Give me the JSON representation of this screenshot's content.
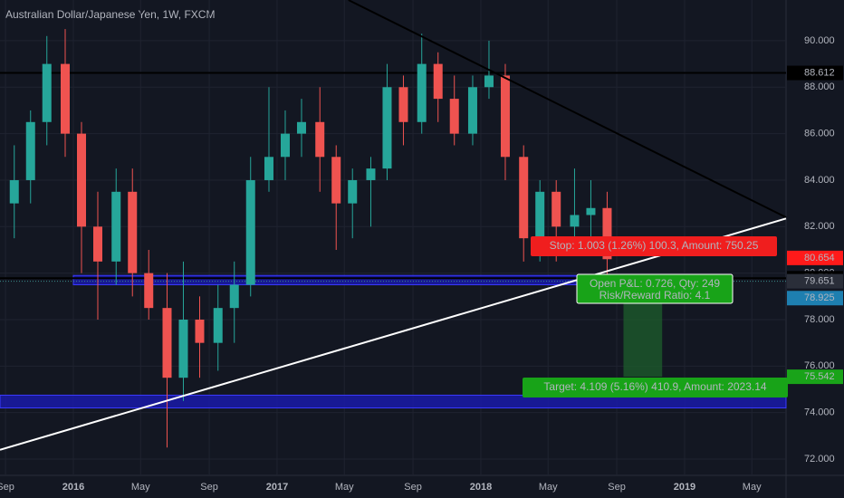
{
  "chart_data": {
    "type": "candlestick",
    "title": "Australian Dollar/Japanese Yen, 1W, FXCM",
    "x": [
      2015.71,
      2015.79,
      2015.87,
      2015.96,
      2016.04,
      2016.12,
      2016.21,
      2016.29,
      2016.37,
      2016.46,
      2016.54,
      2016.62,
      2016.71,
      2016.79,
      2016.87,
      2016.96,
      2017.04,
      2017.12,
      2017.21,
      2017.29,
      2017.37,
      2017.46,
      2017.54,
      2017.62,
      2017.71,
      2017.79,
      2017.87,
      2017.96,
      2018.04,
      2018.12,
      2018.21,
      2018.29,
      2018.37,
      2018.46,
      2018.54,
      2018.62
    ],
    "candles": [
      [
        83,
        85.5,
        81.5,
        84
      ],
      [
        84,
        87,
        83,
        86.5
      ],
      [
        86.5,
        90.2,
        85.5,
        89
      ],
      [
        89,
        90.5,
        85,
        86
      ],
      [
        86,
        86.5,
        80,
        82
      ],
      [
        82,
        83.5,
        78,
        80.5
      ],
      [
        80.5,
        84.5,
        79.5,
        83.5
      ],
      [
        83.5,
        84.5,
        79,
        80
      ],
      [
        80,
        81,
        78,
        78.5
      ],
      [
        78.5,
        80,
        72.5,
        75.5
      ],
      [
        75.5,
        80.5,
        74.5,
        78
      ],
      [
        78,
        79,
        75.5,
        77
      ],
      [
        77,
        79.5,
        75.8,
        78.5
      ],
      [
        78.5,
        80.5,
        77,
        79.5
      ],
      [
        79.5,
        85,
        79,
        84
      ],
      [
        84,
        88,
        83.5,
        85
      ],
      [
        85,
        87,
        84,
        86
      ],
      [
        86,
        87.5,
        85,
        86.5
      ],
      [
        86.5,
        88,
        83.5,
        85
      ],
      [
        85,
        85.5,
        81,
        83
      ],
      [
        83,
        84.5,
        81.5,
        84
      ],
      [
        84,
        85,
        82,
        84.5
      ],
      [
        84.5,
        89,
        84,
        88
      ],
      [
        88,
        88.5,
        85.5,
        86.5
      ],
      [
        86.5,
        90.3,
        86,
        89
      ],
      [
        89,
        89.5,
        86.5,
        87.5
      ],
      [
        87.5,
        88.5,
        85.5,
        86
      ],
      [
        86,
        88.5,
        85.5,
        88
      ],
      [
        88,
        90,
        87.5,
        88.5
      ],
      [
        88.5,
        89,
        84,
        85
      ],
      [
        85,
        85.5,
        80.5,
        81.5
      ],
      [
        81.5,
        84,
        80.5,
        83.5
      ],
      [
        83.5,
        84,
        80.5,
        82
      ],
      [
        82,
        84.5,
        81.5,
        82.5
      ],
      [
        82.5,
        84,
        81.5,
        82.8
      ],
      [
        82.8,
        83.5,
        79,
        80.6
      ]
    ],
    "up_color": "#26a69a",
    "down_color": "#ef5350",
    "xlim": [
      2015.64,
      2019.498
    ],
    "xticks": [
      {
        "value": 2015.667,
        "label": "Sep"
      },
      2016,
      {
        "value": 2016.33,
        "label": "May"
      },
      {
        "value": 2016.667,
        "label": "Sep"
      },
      2017,
      {
        "value": 2017.33,
        "label": "May"
      },
      {
        "value": 2017.667,
        "label": "Sep"
      },
      2018,
      {
        "value": 2018.33,
        "label": "May"
      },
      {
        "value": 2018.667,
        "label": "Sep"
      },
      2019,
      {
        "value": 2019.33,
        "label": "May"
      }
    ],
    "ylim": [
      71.3,
      91.75
    ],
    "yticks": [
      {
        "value": 72,
        "label": "72.000"
      },
      {
        "value": 74,
        "label": "74.000"
      },
      {
        "value": 76,
        "label": "76.000"
      },
      {
        "value": 78,
        "label": "78.000"
      },
      {
        "value": 80,
        "label": "80.000"
      },
      {
        "value": 82,
        "label": "82.000"
      },
      {
        "value": 84,
        "label": "84.000"
      },
      {
        "value": 86,
        "label": "86.000"
      },
      {
        "value": 88,
        "label": "88.000"
      },
      {
        "value": 90,
        "label": "90.000"
      }
    ],
    "grid": true,
    "zones": [
      {
        "x": [
          2016.0,
          2018.66
        ],
        "y": [
          79.5,
          79.9
        ],
        "color": "#1a1aa8"
      },
      {
        "x": [
          2015.64,
          2019.498
        ],
        "y": [
          74.2,
          74.75
        ],
        "color": "#1a1aa8"
      }
    ],
    "trendlines": [
      {
        "x": [
          2017.35,
          2019.498
        ],
        "y": [
          91.75,
          82.4
        ],
        "color": "#000000"
      },
      {
        "x": [
          2015.64,
          2019.498
        ],
        "y": [
          72.4,
          82.35
        ],
        "color": "#ffffff"
      }
    ],
    "levels": [
      {
        "value": 88.612,
        "color": "#000000",
        "style": "solid"
      },
      {
        "value": 80.654,
        "color": "#ff1a1a",
        "style": "none"
      },
      {
        "value": 79.781,
        "color": "#000000",
        "style": "solid"
      },
      {
        "value": 79.651,
        "color": "#5a6a7a",
        "style": "dotted"
      },
      {
        "value": 78.925,
        "color": "#1e7fb0",
        "style": "none"
      },
      {
        "value": 75.542,
        "color": "#19a319",
        "style": "none"
      }
    ],
    "target_zone": {
      "x": [
        2018.7,
        2018.89
      ],
      "y": [
        75.542,
        78.925
      ],
      "color": "#1d5a2c"
    },
    "position": {
      "stop": "Stop: 1.003 (1.26%) 100.3, Amount: 750.25",
      "open": "Open P&L: 0.726, Qty: 249",
      "ratio": "Risk/Reward Ratio: 4.1",
      "target": "Target: 4.109 (5.16%) 410.9, Amount: 2023.14"
    }
  }
}
